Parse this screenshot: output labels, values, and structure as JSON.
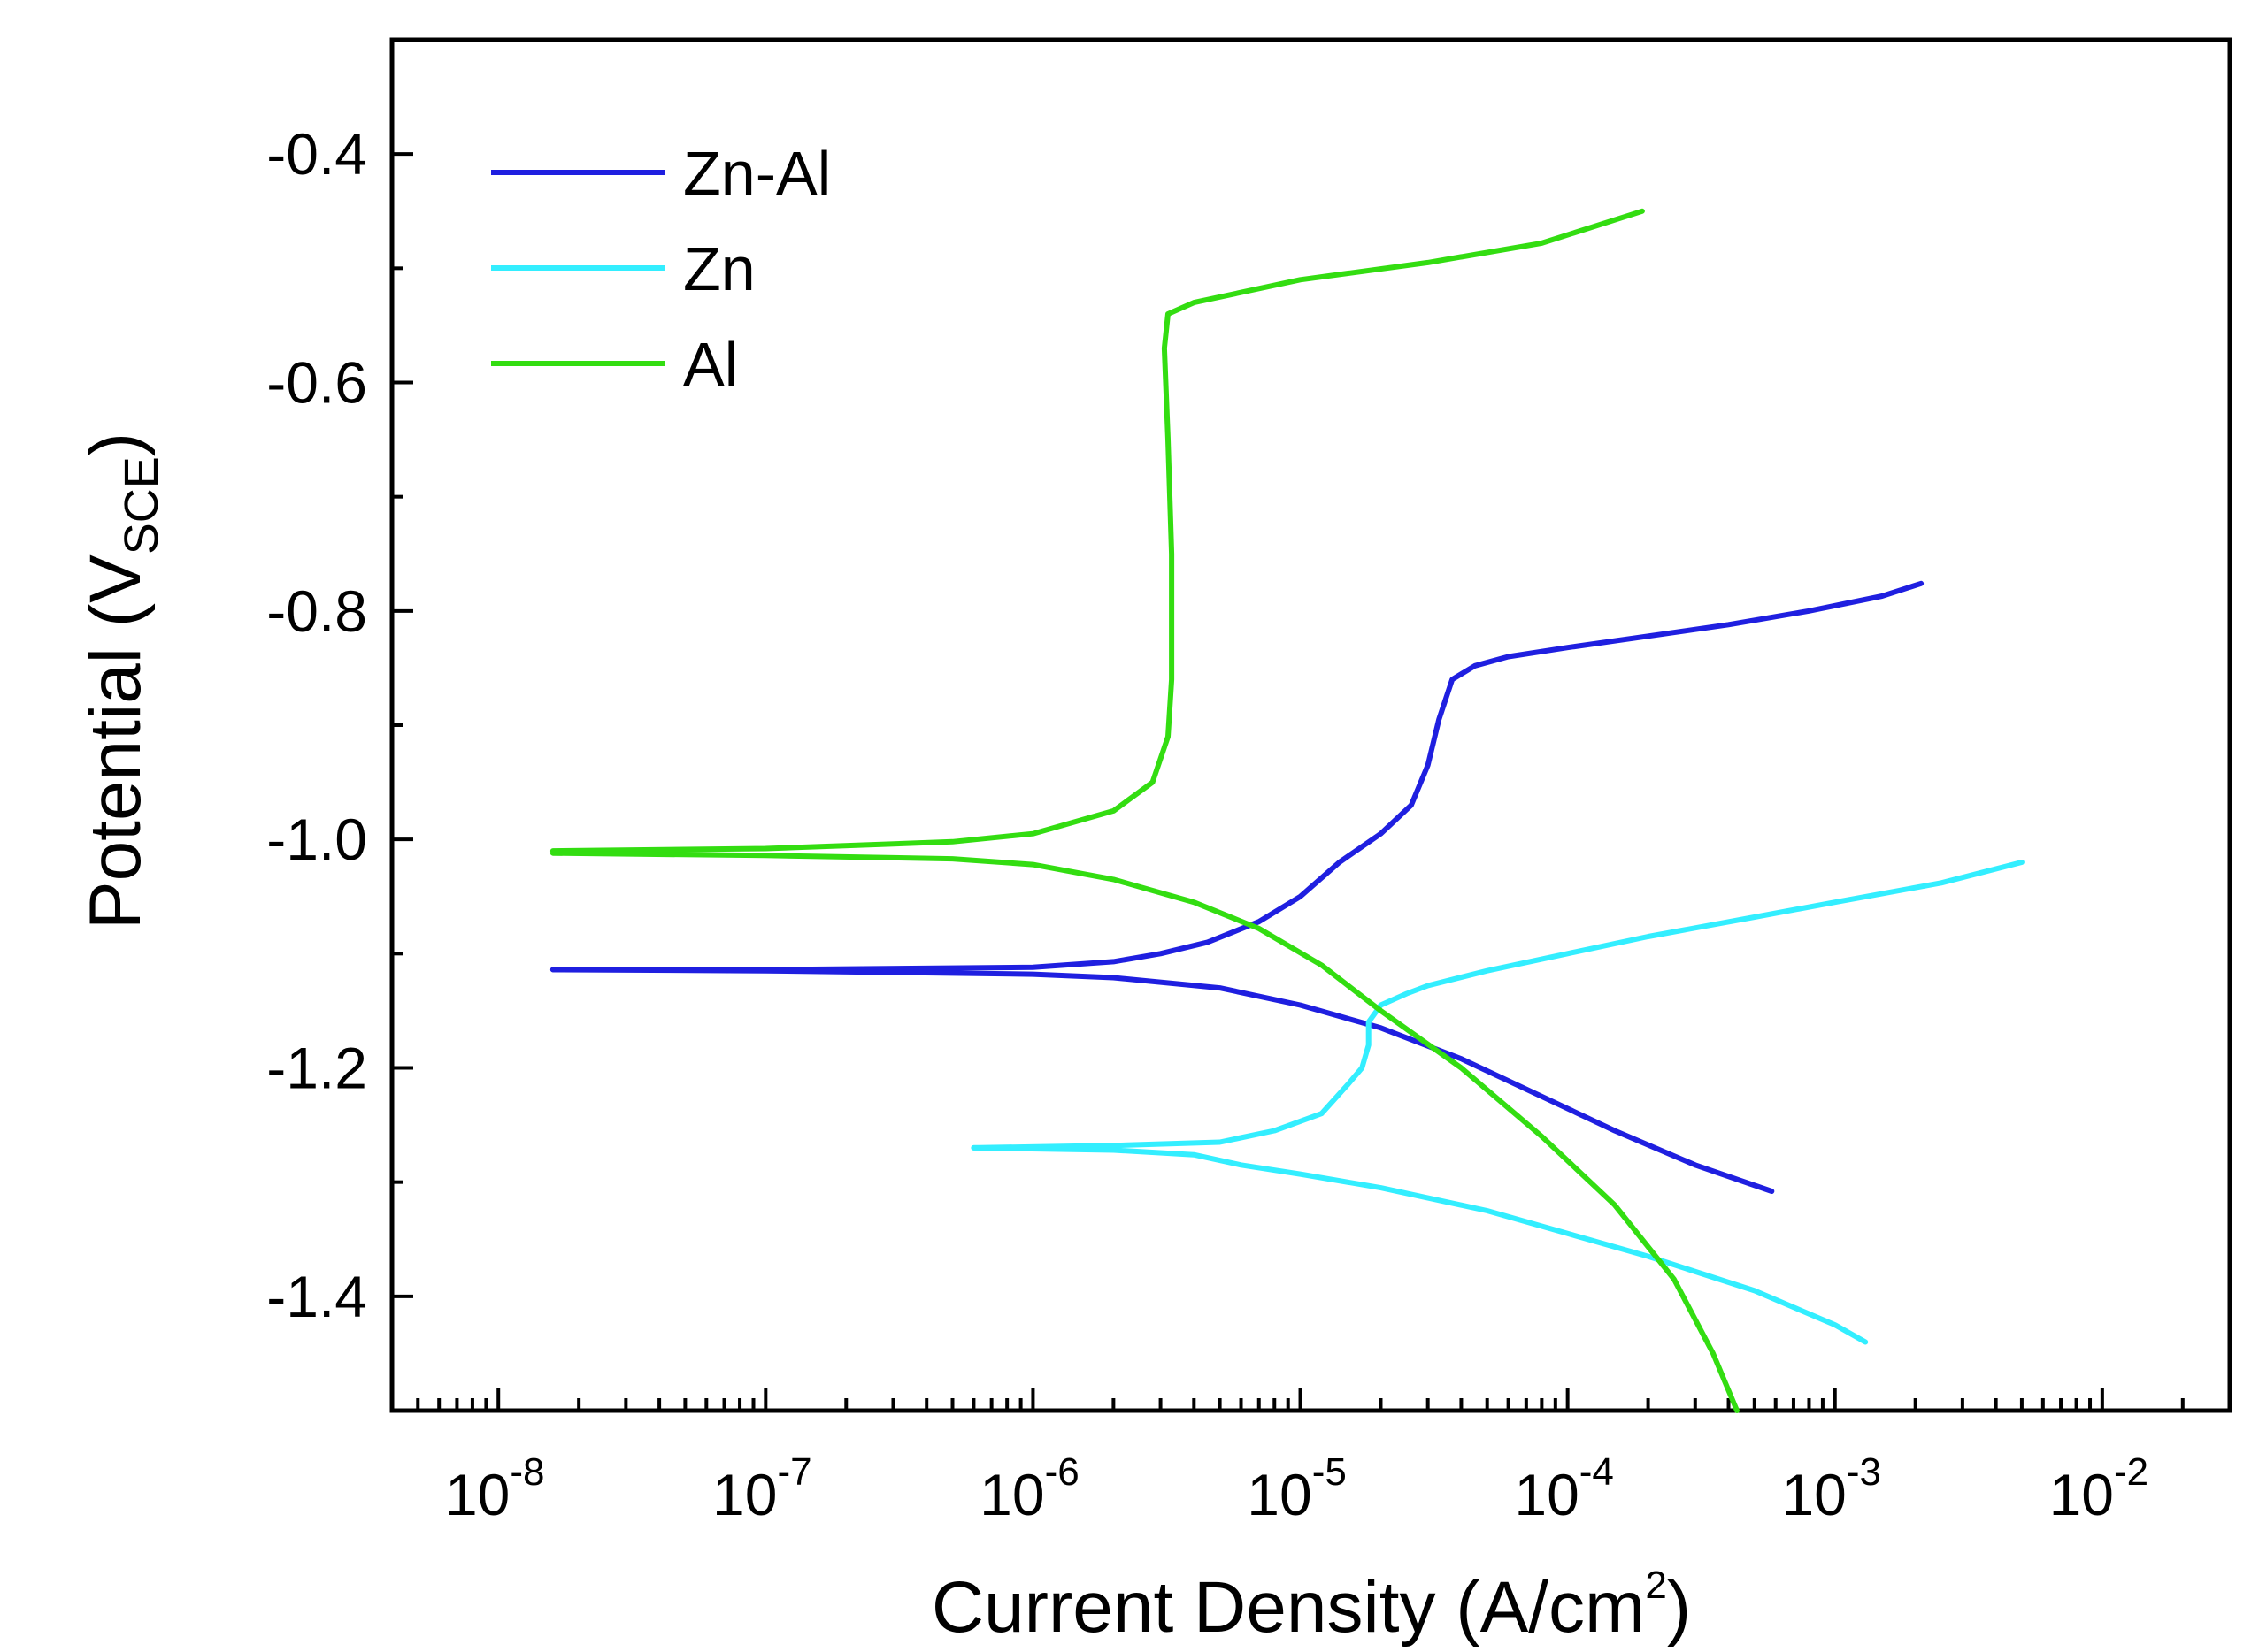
{
  "chart_data": {
    "type": "line",
    "title": "",
    "xlabel": "Current Density (A/cm",
    "xlabel_sup": "2",
    "xlabel_end": ")",
    "ylabel": "Potential (V",
    "ylabel_sub": "SCE",
    "ylabel_end": ")",
    "x_scale": "log",
    "xlim": [
      4e-09,
      0.03
    ],
    "ylim": [
      -1.5,
      -0.3
    ],
    "x_ticks": [
      {
        "value": 1e-08,
        "base": "10",
        "exp": "-8"
      },
      {
        "value": 1e-07,
        "base": "10",
        "exp": "-7"
      },
      {
        "value": 1e-06,
        "base": "10",
        "exp": "-6"
      },
      {
        "value": 1e-05,
        "base": "10",
        "exp": "-5"
      },
      {
        "value": 0.0001,
        "base": "10",
        "exp": "-4"
      },
      {
        "value": 0.001,
        "base": "10",
        "exp": "-3"
      },
      {
        "value": 0.01,
        "base": "10",
        "exp": "-2"
      }
    ],
    "y_ticks": [
      {
        "value": -0.4,
        "label": "-0.4"
      },
      {
        "value": -0.6,
        "label": "-0.6"
      },
      {
        "value": -0.8,
        "label": "-0.8"
      },
      {
        "value": -1.0,
        "label": "-1.0"
      },
      {
        "value": -1.2,
        "label": "-1.2"
      },
      {
        "value": -1.4,
        "label": "-1.4"
      }
    ],
    "y_minor_ticks": [
      -0.5,
      -0.7,
      -0.9,
      -1.1,
      -1.3
    ],
    "legend_position": "top-left",
    "series": [
      {
        "name": "Zn-Al",
        "color": "#1f1fe0",
        "points": [
          [
            1.6e-08,
            -1.114
          ],
          [
            1e-07,
            -1.114
          ],
          [
            1e-06,
            -1.112
          ],
          [
            2e-06,
            -1.107
          ],
          [
            3e-06,
            -1.1
          ],
          [
            4.5e-06,
            -1.09
          ],
          [
            7e-06,
            -1.072
          ],
          [
            1e-05,
            -1.05
          ],
          [
            1.4e-05,
            -1.02
          ],
          [
            2e-05,
            -0.995
          ],
          [
            2.6e-05,
            -0.97
          ],
          [
            3e-05,
            -0.935
          ],
          [
            3.3e-05,
            -0.895
          ],
          [
            3.7e-05,
            -0.86
          ],
          [
            4.5e-05,
            -0.848
          ],
          [
            6e-05,
            -0.84
          ],
          [
            0.0001,
            -0.832
          ],
          [
            0.0002,
            -0.822
          ],
          [
            0.0004,
            -0.812
          ],
          [
            0.0008,
            -0.8
          ],
          [
            0.0015,
            -0.787
          ],
          [
            0.0021,
            -0.776
          ]
        ],
        "cathodic": [
          [
            1.6e-08,
            -1.114
          ],
          [
            1e-07,
            -1.115
          ],
          [
            1e-06,
            -1.118
          ],
          [
            2e-06,
            -1.121
          ],
          [
            5e-06,
            -1.13
          ],
          [
            1e-05,
            -1.145
          ],
          [
            2e-05,
            -1.165
          ],
          [
            4e-05,
            -1.192
          ],
          [
            8e-05,
            -1.225
          ],
          [
            0.00015,
            -1.255
          ],
          [
            0.0003,
            -1.285
          ],
          [
            0.00058,
            -1.308
          ]
        ]
      },
      {
        "name": "Zn",
        "color": "#33eeff",
        "points": [
          [
            6e-07,
            -1.27
          ],
          [
            2e-06,
            -1.268
          ],
          [
            5e-06,
            -1.265
          ],
          [
            8e-06,
            -1.255
          ],
          [
            1.2e-05,
            -1.24
          ],
          [
            1.5e-05,
            -1.215
          ],
          [
            1.7e-05,
            -1.2
          ],
          [
            1.8e-05,
            -1.18
          ],
          [
            1.8e-05,
            -1.16
          ],
          [
            2e-05,
            -1.145
          ],
          [
            2.5e-05,
            -1.135
          ],
          [
            3e-05,
            -1.128
          ],
          [
            5e-05,
            -1.115
          ],
          [
            0.0001,
            -1.1
          ],
          [
            0.0002,
            -1.085
          ],
          [
            0.0005,
            -1.068
          ],
          [
            0.001,
            -1.055
          ],
          [
            0.0025,
            -1.038
          ],
          [
            0.005,
            -1.02
          ]
        ],
        "cathodic": [
          [
            6e-07,
            -1.27
          ],
          [
            2e-06,
            -1.272
          ],
          [
            4e-06,
            -1.276
          ],
          [
            6e-06,
            -1.285
          ],
          [
            1e-05,
            -1.293
          ],
          [
            2e-05,
            -1.305
          ],
          [
            5e-05,
            -1.325
          ],
          [
            0.0001,
            -1.345
          ],
          [
            0.0002,
            -1.365
          ],
          [
            0.0005,
            -1.395
          ],
          [
            0.001,
            -1.425
          ],
          [
            0.0013,
            -1.44
          ]
        ]
      },
      {
        "name": "Al",
        "color": "#33dd11",
        "points": [
          [
            1.6e-08,
            -1.01
          ],
          [
            1e-07,
            -1.008
          ],
          [
            5e-07,
            -1.002
          ],
          [
            1e-06,
            -0.995
          ],
          [
            2e-06,
            -0.975
          ],
          [
            2.8e-06,
            -0.95
          ],
          [
            3.2e-06,
            -0.91
          ],
          [
            3.3e-06,
            -0.86
          ],
          [
            3.3e-06,
            -0.75
          ],
          [
            3.2e-06,
            -0.65
          ],
          [
            3.1e-06,
            -0.57
          ],
          [
            3.2e-06,
            -0.54
          ],
          [
            4e-06,
            -0.53
          ],
          [
            1e-05,
            -0.51
          ],
          [
            3e-05,
            -0.495
          ],
          [
            8e-05,
            -0.478
          ],
          [
            0.00019,
            -0.45
          ]
        ],
        "cathodic": [
          [
            1.6e-08,
            -1.012
          ],
          [
            1e-07,
            -1.014
          ],
          [
            5e-07,
            -1.017
          ],
          [
            1e-06,
            -1.022
          ],
          [
            2e-06,
            -1.035
          ],
          [
            4e-06,
            -1.055
          ],
          [
            7e-06,
            -1.078
          ],
          [
            1.2e-05,
            -1.11
          ],
          [
            2e-05,
            -1.15
          ],
          [
            4e-05,
            -1.2
          ],
          [
            8e-05,
            -1.26
          ],
          [
            0.00015,
            -1.32
          ],
          [
            0.00025,
            -1.385
          ],
          [
            0.00035,
            -1.45
          ],
          [
            0.00043,
            -1.5
          ]
        ]
      }
    ]
  }
}
